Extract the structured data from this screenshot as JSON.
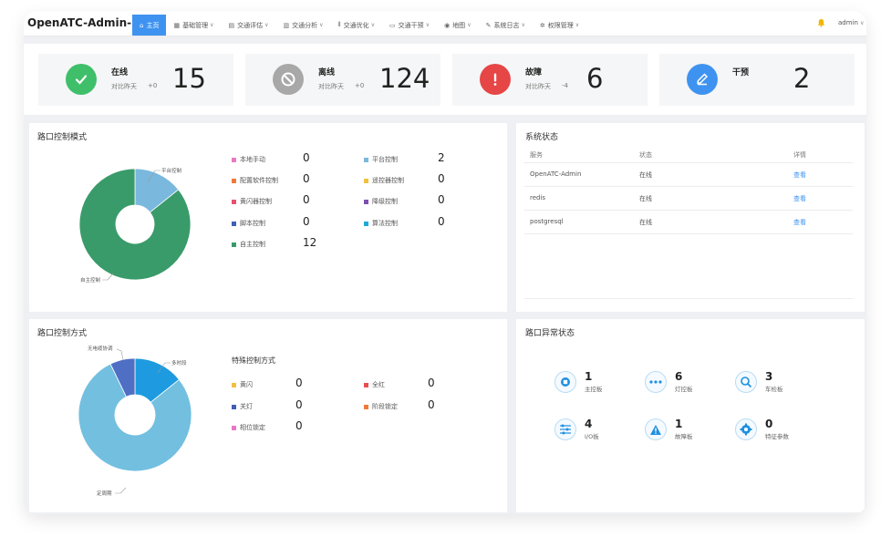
{
  "app_title": "OpenATC-Admin-Pro",
  "nav": [
    {
      "label": "主页",
      "icon": "home-icon"
    },
    {
      "label": "基础管理",
      "icon": "table-icon"
    },
    {
      "label": "交通评估",
      "icon": "doc-icon"
    },
    {
      "label": "交通分析",
      "icon": "chart-icon"
    },
    {
      "label": "交通优化",
      "icon": "barcode-icon"
    },
    {
      "label": "交通干预",
      "icon": "intervene-icon"
    },
    {
      "label": "地图",
      "icon": "pin-icon"
    },
    {
      "label": "系统日志",
      "icon": "edit-icon"
    },
    {
      "label": "权限管理",
      "icon": "gear-icon"
    }
  ],
  "user": "admin",
  "stats": [
    {
      "label": "在线",
      "sub": "对比昨天",
      "delta": "+0",
      "value": "15",
      "color": "#3fbf6a",
      "icon": "check-icon"
    },
    {
      "label": "离线",
      "sub": "对比昨天",
      "delta": "+0",
      "value": "124",
      "color": "#a8a8a8",
      "icon": "ban-icon"
    },
    {
      "label": "故障",
      "sub": "对比昨天",
      "delta": "-4",
      "value": "6",
      "color": "#e64646",
      "icon": "exclamation-icon"
    },
    {
      "label": "干预",
      "sub": "",
      "delta": "",
      "value": "2",
      "color": "#3f93f0",
      "icon": "pencil-icon"
    }
  ],
  "control_mode": {
    "title": "路口控制模式",
    "pie_labels": {
      "a": "平台控制",
      "b": "自主控制"
    },
    "legend": [
      {
        "label": "本地手动",
        "value": "0",
        "color": "#e879c2"
      },
      {
        "label": "平台控制",
        "value": "2",
        "color": "#7ab8de"
      },
      {
        "label": "配置软件控制",
        "value": "0",
        "color": "#f07a3a"
      },
      {
        "label": "遥控器控制",
        "value": "0",
        "color": "#f0c040"
      },
      {
        "label": "黄闪器控制",
        "value": "0",
        "color": "#e85070"
      },
      {
        "label": "降级控制",
        "value": "0",
        "color": "#7c4fb0"
      },
      {
        "label": "脚本控制",
        "value": "0",
        "color": "#3f5fb8"
      },
      {
        "label": "算法控制",
        "value": "0",
        "color": "#1eaad8"
      },
      {
        "label": "自主控制",
        "value": "12",
        "color": "#3a9b6a"
      }
    ]
  },
  "system_status": {
    "title": "系统状态",
    "headers": [
      "服务",
      "状态",
      "详情"
    ],
    "rows": [
      {
        "service": "OpenATC-Admin",
        "status": "在线",
        "link": "查看"
      },
      {
        "service": "redis",
        "status": "在线",
        "link": "查看"
      },
      {
        "service": "postgresql",
        "status": "在线",
        "link": "查看"
      }
    ]
  },
  "control_method": {
    "title": "路口控制方式",
    "pie_labels": {
      "a": "无电缆协调",
      "b": "多时段",
      "c": "定周期"
    },
    "special_title": "特殊控制方式",
    "legend": [
      {
        "label": "黄闪",
        "value": "0",
        "color": "#f0c040"
      },
      {
        "label": "全红",
        "value": "0",
        "color": "#e85050"
      },
      {
        "label": "关灯",
        "value": "0",
        "color": "#3f5fb8"
      },
      {
        "label": "阶段锁定",
        "value": "0",
        "color": "#f07a3a"
      },
      {
        "label": "相位锁定",
        "value": "0",
        "color": "#e879c2"
      }
    ]
  },
  "abnormal": {
    "title": "路口异常状态",
    "items": [
      {
        "value": "1",
        "label": "主控板",
        "icon": "chip-icon"
      },
      {
        "value": "6",
        "label": "灯控板",
        "icon": "dots-icon"
      },
      {
        "value": "3",
        "label": "车检板",
        "icon": "search-car-icon"
      },
      {
        "value": "4",
        "label": "I/O板",
        "icon": "sliders-icon"
      },
      {
        "value": "1",
        "label": "故障板",
        "icon": "warning-icon"
      },
      {
        "value": "0",
        "label": "特征参数",
        "icon": "cog-icon"
      }
    ]
  },
  "chart_data": [
    {
      "type": "pie",
      "title": "路口控制模式",
      "categories": [
        "平台控制",
        "自主控制"
      ],
      "values": [
        2,
        12
      ]
    },
    {
      "type": "pie",
      "title": "路口控制方式",
      "categories": [
        "多时段",
        "定周期",
        "无电缆协调"
      ],
      "values": [
        2,
        11,
        1
      ]
    }
  ]
}
